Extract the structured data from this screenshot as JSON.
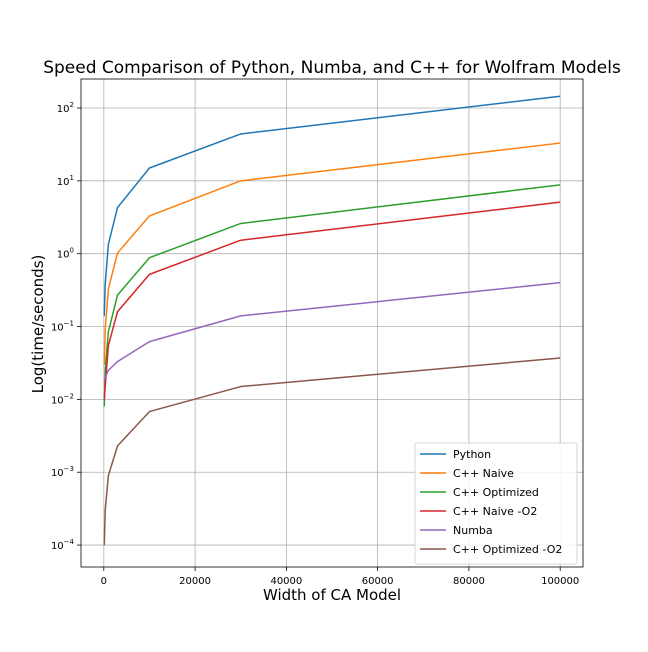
{
  "chart_data": {
    "type": "line",
    "title": "Speed Comparison of Python, Numba, and C++ for Wolfram Models",
    "xlabel": "Width of CA Model",
    "ylabel": "Log(time/seconds)",
    "xlim": [
      -5000,
      105000
    ],
    "ylim": [
      5e-05,
      250
    ],
    "yscale": "log",
    "grid": true,
    "legend_position": "lower-right",
    "x_ticks": [
      {
        "value": 0,
        "label": "0"
      },
      {
        "value": 20000,
        "label": "20000"
      },
      {
        "value": 40000,
        "label": "40000"
      },
      {
        "value": 60000,
        "label": "60000"
      },
      {
        "value": 80000,
        "label": "80000"
      },
      {
        "value": 100000,
        "label": "100000"
      }
    ],
    "y_ticks": [
      {
        "value": 0.0001,
        "base": "10",
        "exp": "−4"
      },
      {
        "value": 0.001,
        "base": "10",
        "exp": "−3"
      },
      {
        "value": 0.01,
        "base": "10",
        "exp": "−2"
      },
      {
        "value": 0.1,
        "base": "10",
        "exp": "−1"
      },
      {
        "value": 1,
        "base": "10",
        "exp": "0"
      },
      {
        "value": 10,
        "base": "10",
        "exp": "1"
      },
      {
        "value": 100,
        "base": "10",
        "exp": "2"
      }
    ],
    "x": [
      100,
      300,
      1000,
      3000,
      10000,
      30000,
      100000
    ],
    "series": [
      {
        "name": "Python",
        "color": "#1f77b4",
        "values": [
          0.14,
          0.38,
          1.35,
          4.3,
          15,
          44,
          145
        ]
      },
      {
        "name": "C++ Naive",
        "color": "#ff7f0e",
        "values": [
          0.03,
          0.09,
          0.33,
          1.02,
          3.3,
          10,
          33
        ]
      },
      {
        "name": "C++ Optimized",
        "color": "#2ca02c",
        "values": [
          0.008,
          0.025,
          0.085,
          0.27,
          0.88,
          2.6,
          8.8
        ]
      },
      {
        "name": "C++ Naive -O2",
        "color": "#d62728",
        "values": [
          0.01,
          0.015,
          0.055,
          0.16,
          0.52,
          1.53,
          5.1
        ]
      },
      {
        "name": "Numba",
        "color": "#9467bd",
        "values": [
          0.018,
          0.02,
          0.025,
          0.033,
          0.062,
          0.14,
          0.4
        ]
      },
      {
        "name": "C++ Optimized -O2",
        "color": "#8c564b",
        "values": [
          0.0001,
          0.0003,
          0.0009,
          0.0023,
          0.0068,
          0.015,
          0.037
        ]
      }
    ]
  }
}
